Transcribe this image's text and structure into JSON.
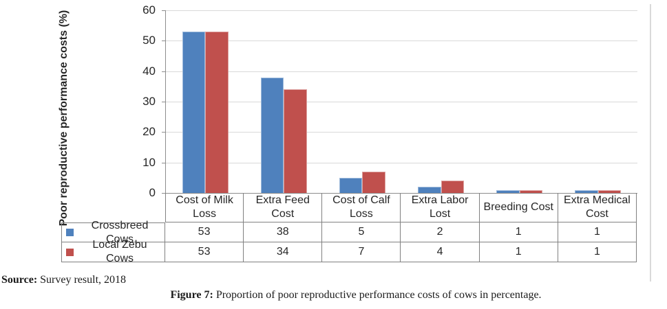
{
  "figure": {
    "source": {
      "label": "Source:",
      "text": "Survey result, 2018"
    },
    "caption": {
      "label": "Figure 7:",
      "text": "Proportion of poor reproductive performance costs of cows in percentage."
    }
  },
  "chart_data": {
    "type": "bar",
    "title": "",
    "xlabel": "",
    "ylabel": "Poor reproductive performance costs (%)",
    "ylim": [
      0,
      60
    ],
    "yticks": [
      0,
      10,
      20,
      30,
      40,
      50,
      60
    ],
    "grid": true,
    "legend_position": "left-of-data-table",
    "categories": [
      "Cost of Milk Loss",
      "Extra Feed Cost",
      "Cost of Calf Loss",
      "Extra Labor Lost",
      "Breeding Cost",
      "Extra Medical Cost"
    ],
    "series": [
      {
        "name": "Crossbreed Cows",
        "color": "#4F81BD",
        "values": [
          53,
          38,
          5,
          2,
          1,
          1
        ]
      },
      {
        "name": "Local Zebu Cows",
        "color": "#C0504D",
        "values": [
          53,
          34,
          7,
          4,
          1,
          1
        ]
      }
    ]
  },
  "colors": {
    "axis": "#8C8C8C",
    "gridline": "#D9D9D9",
    "table_border": "#808080",
    "chart_text": "#262626",
    "right_edge": "#D9D9D9"
  }
}
